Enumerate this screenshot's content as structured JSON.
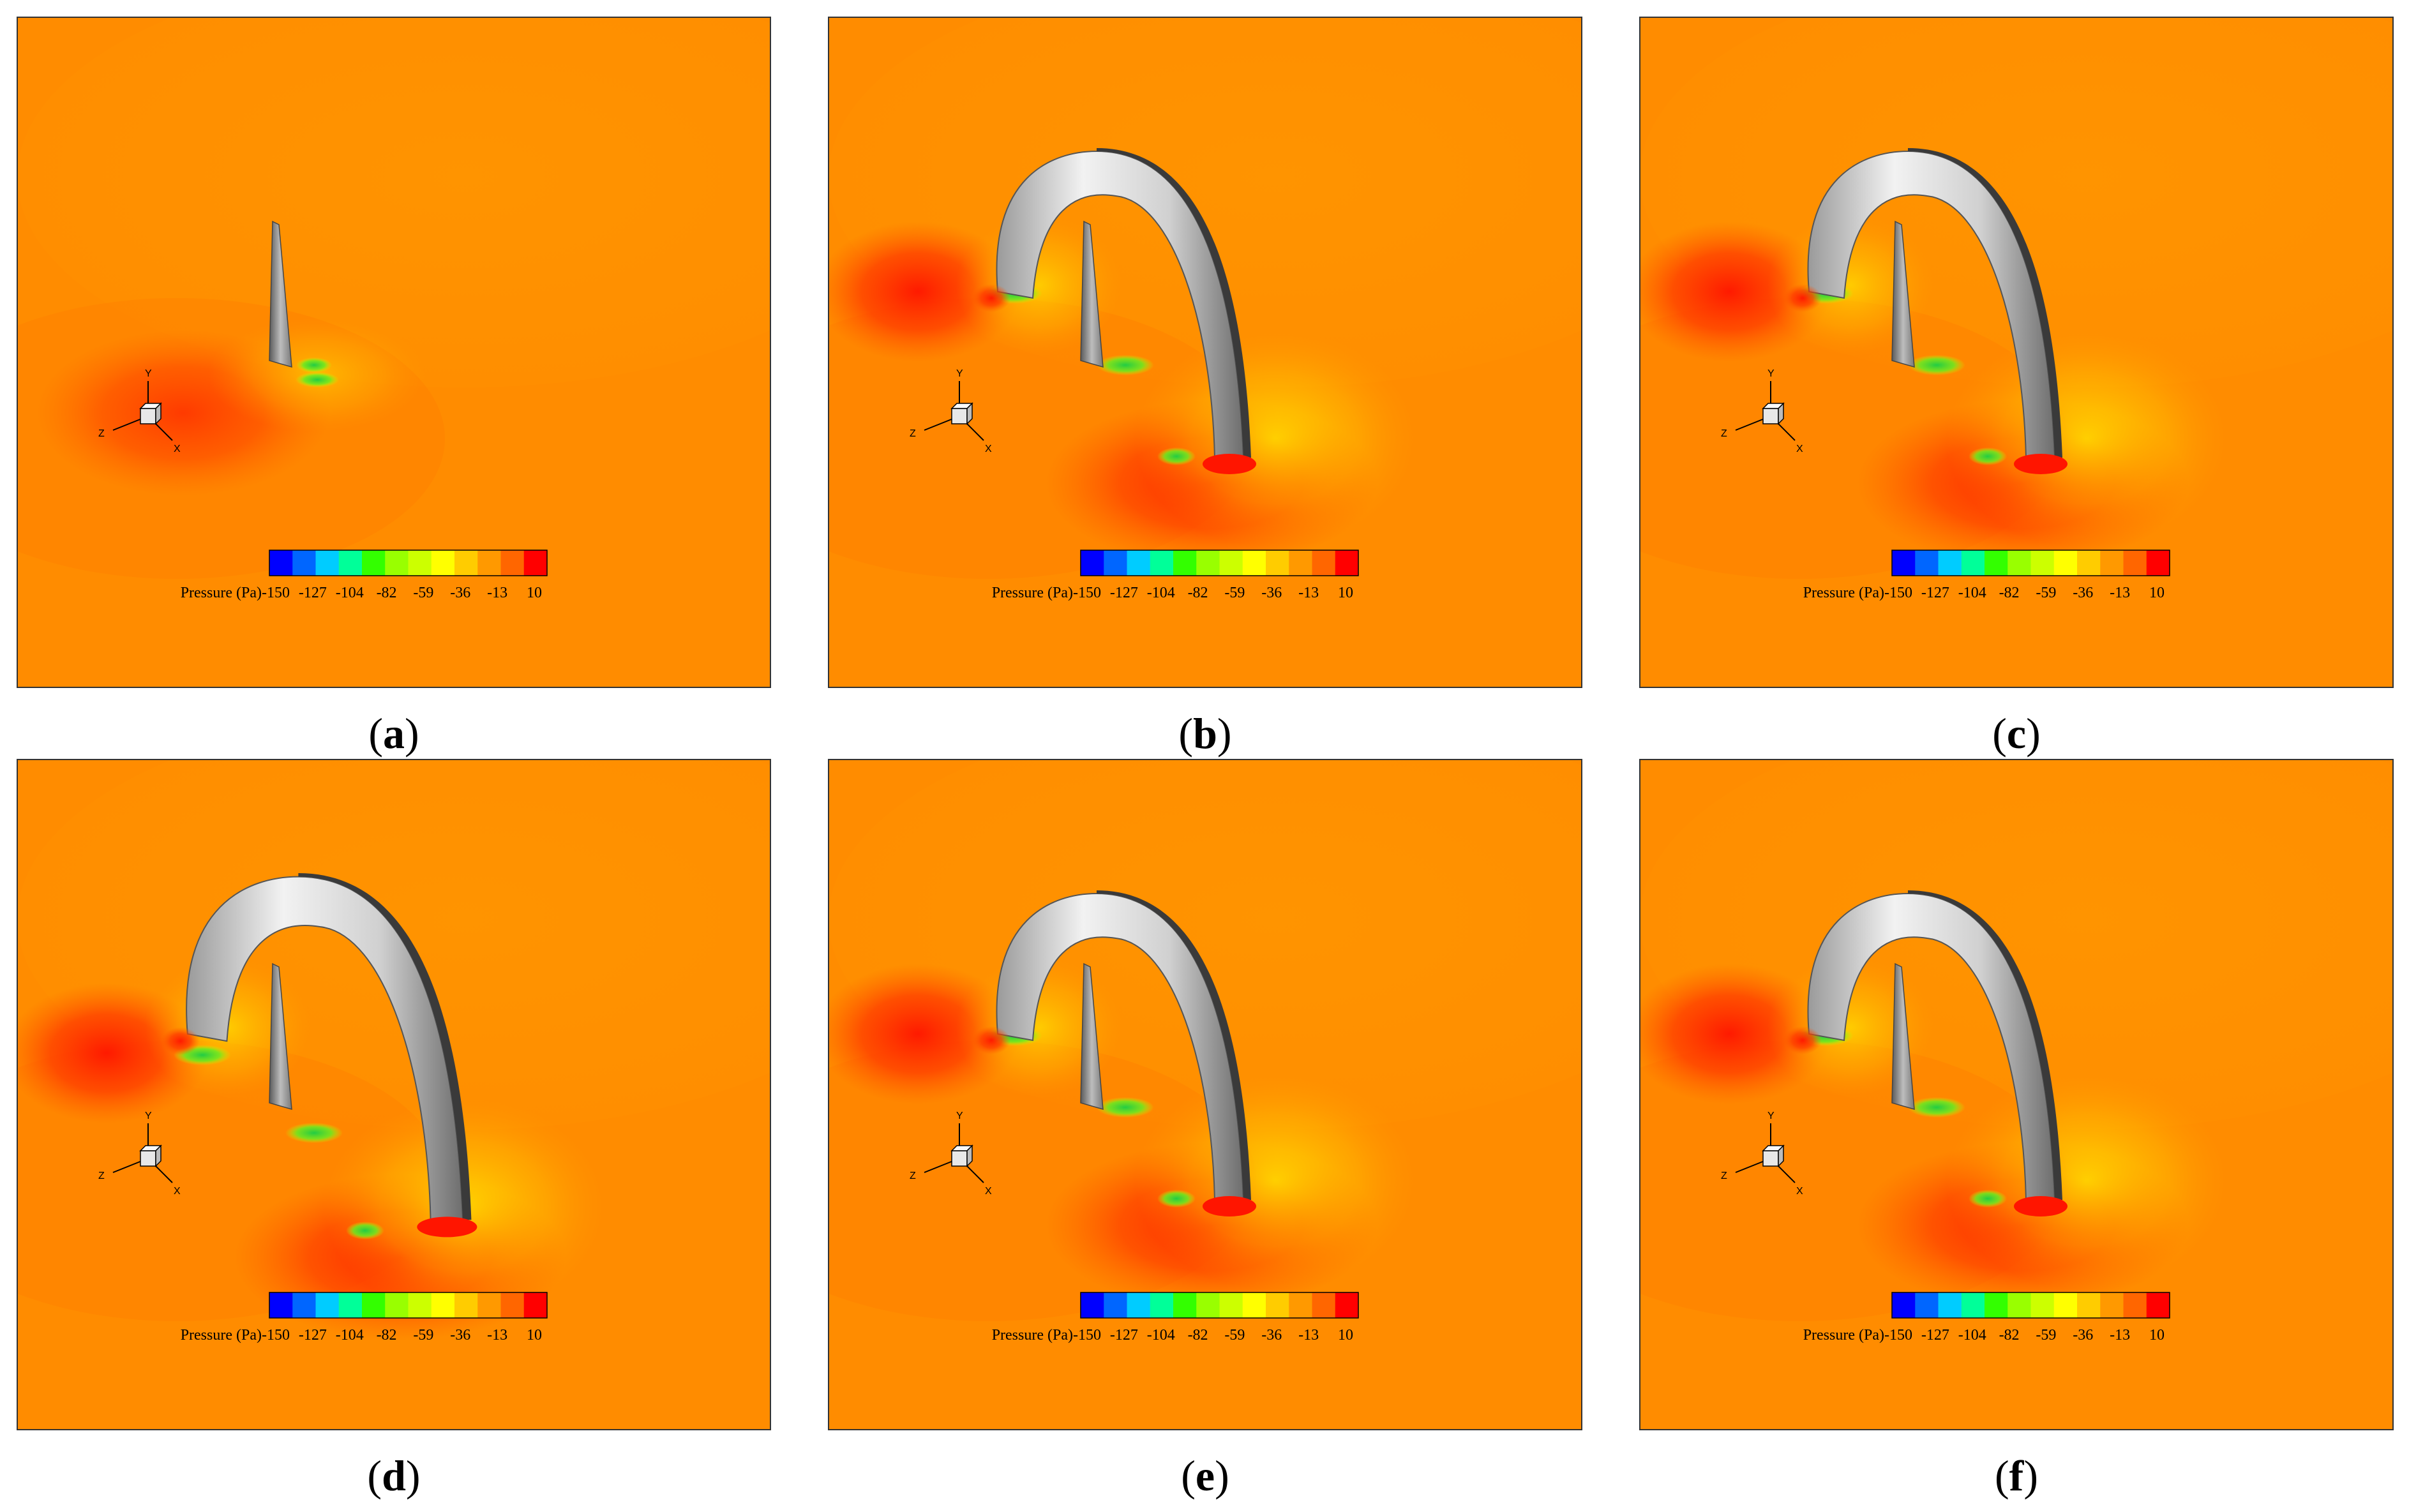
{
  "colorbar": {
    "label": "Pressure (Pa)",
    "ticks": [
      "-150",
      "-127",
      "-104",
      "-82",
      "-59",
      "-36",
      "-13",
      "10"
    ],
    "colors": [
      "#0000ff",
      "#0066ff",
      "#00ccff",
      "#00ff99",
      "#33ff00",
      "#99ff00",
      "#ccff00",
      "#ffff00",
      "#ffcc00",
      "#ff9900",
      "#ff6600",
      "#ff0000"
    ]
  },
  "axes_triad": {
    "x": "X",
    "y": "Y",
    "z": "Z"
  },
  "colors": {
    "background_field": "#ff8c00",
    "high_pressure": "#ff1a00",
    "low_pressure": "#33dd33",
    "surface": "#d9d9d9"
  },
  "panels": [
    {
      "id": "a",
      "caption_open": "(",
      "caption_letter": "a",
      "caption_close": ")",
      "shroud": false
    },
    {
      "id": "b",
      "caption_open": "(",
      "caption_letter": "b",
      "caption_close": ")",
      "shroud": true
    },
    {
      "id": "c",
      "caption_open": "(",
      "caption_letter": "c",
      "caption_close": ")",
      "shroud": true
    },
    {
      "id": "d",
      "caption_open": "(",
      "caption_letter": "d",
      "caption_close": ")",
      "shroud": true
    },
    {
      "id": "e",
      "caption_open": "(",
      "caption_letter": "e",
      "caption_close": ")",
      "shroud": true
    },
    {
      "id": "f",
      "caption_open": "(",
      "caption_letter": "f",
      "caption_close": ")",
      "shroud": true
    }
  ]
}
